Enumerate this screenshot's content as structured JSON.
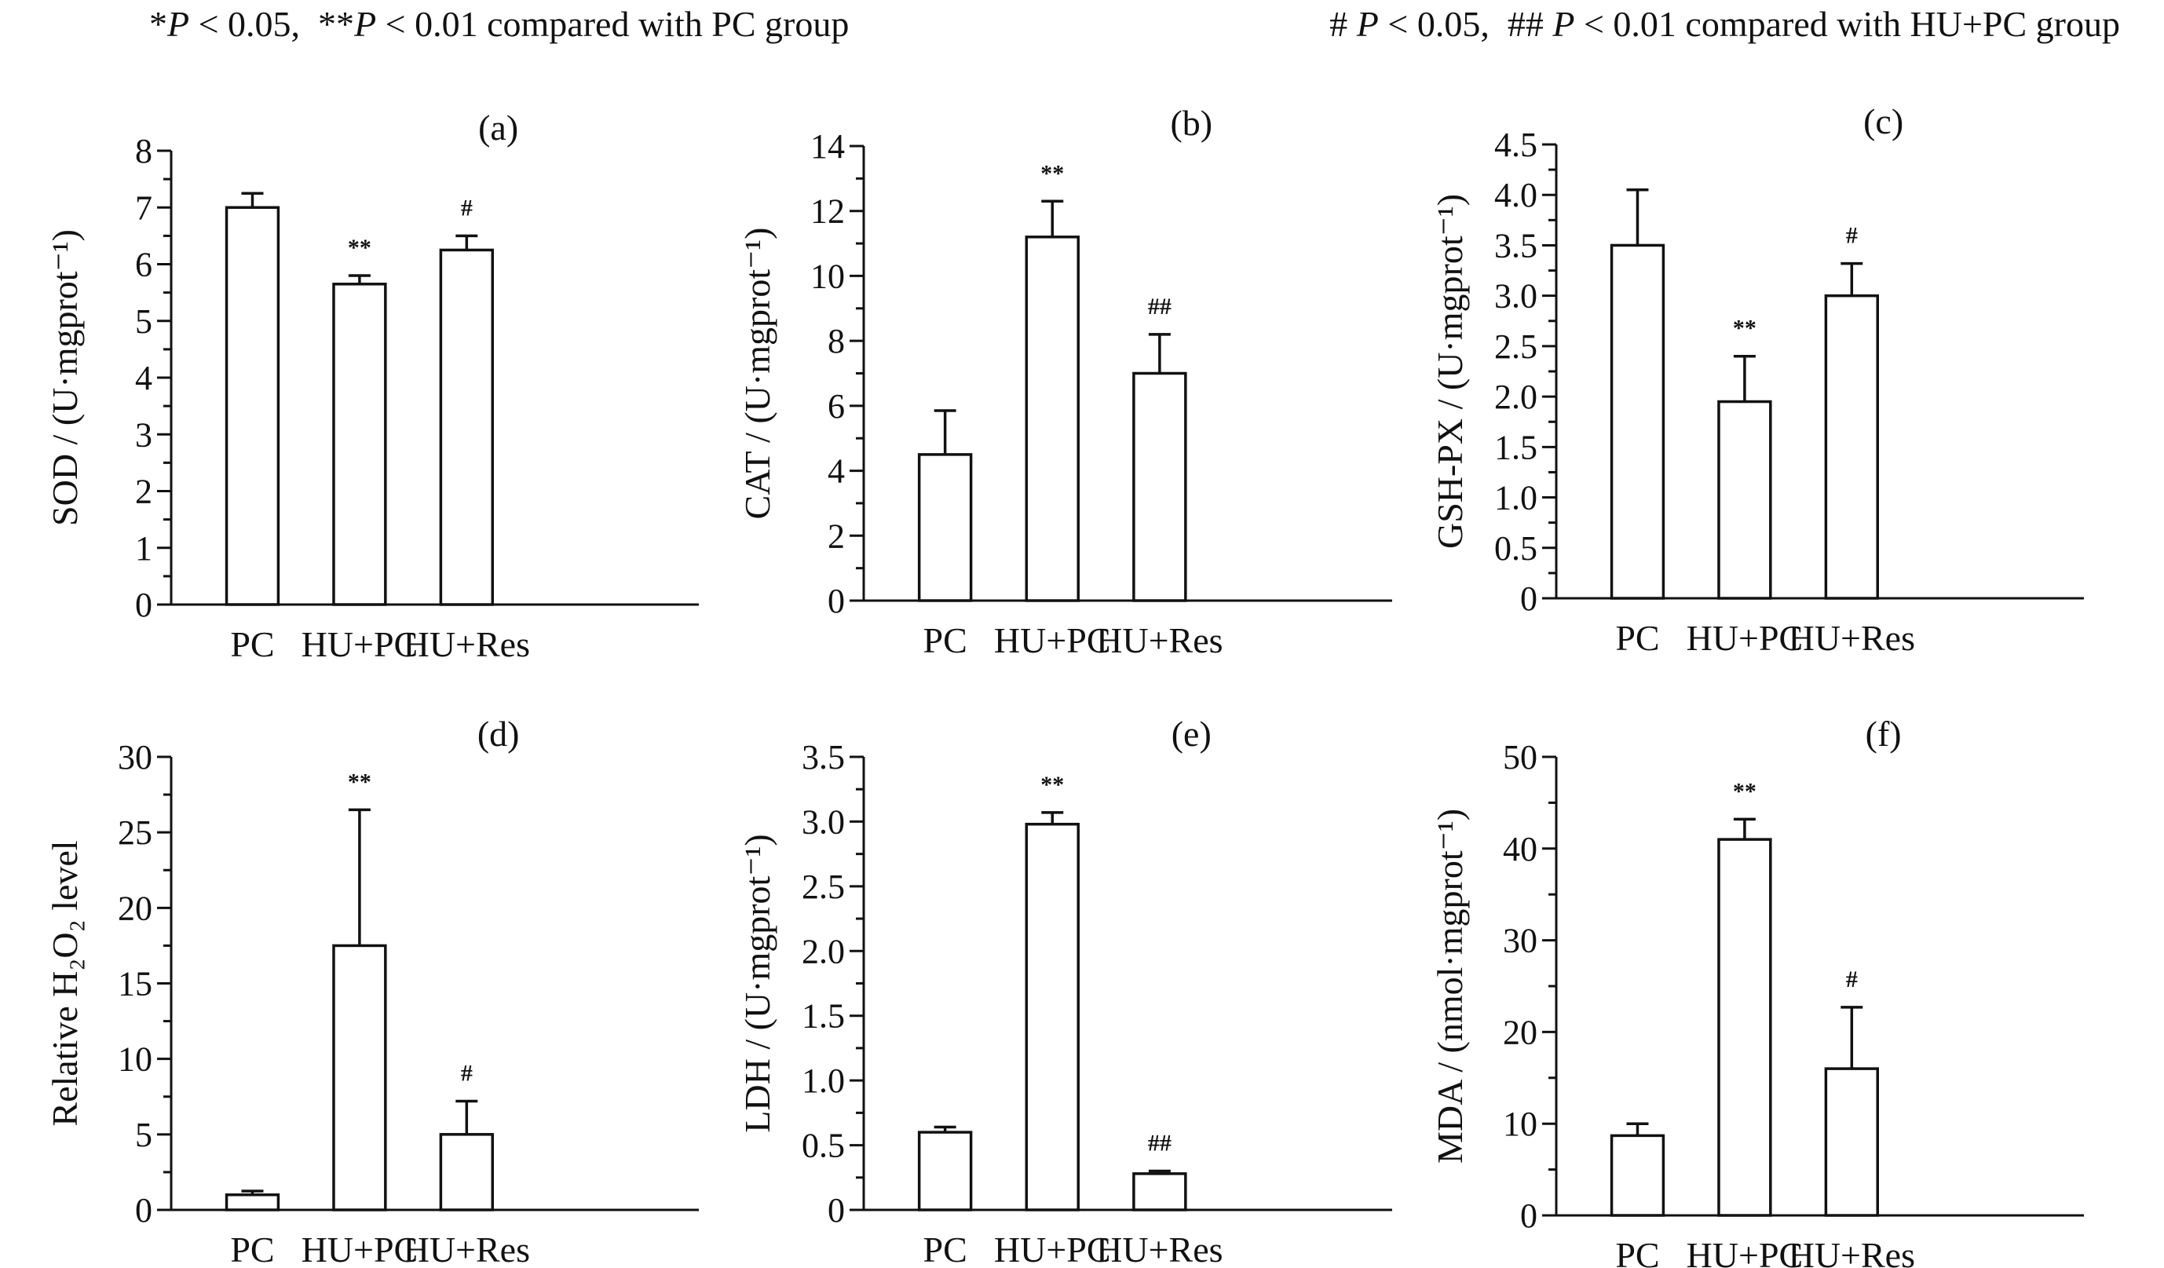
{
  "legend": {
    "left_star": "*",
    "left_p1": "P",
    "left_mid": " < 0.05,  **",
    "left_p2": "P",
    "left_end": " < 0.01 compared with PC group",
    "right_start": "# ",
    "right_p1": "P",
    "right_mid": " < 0.05,  ## ",
    "right_p2": "P",
    "right_end": " < 0.01 compared with HU+PC group"
  },
  "colors": {
    "bar_fill": "#ffffff",
    "stroke": "#111111",
    "background": "#ffffff"
  },
  "chart_data": [
    {
      "type": "bar",
      "panel": "(a)",
      "categories": [
        "PC",
        "HU+PC",
        "HU+Res"
      ],
      "values": [
        7.0,
        5.65,
        6.25
      ],
      "errors": [
        0.25,
        0.15,
        0.25
      ],
      "annotations": [
        "",
        "**",
        "#"
      ],
      "ylabel": "SOD / (U·mgprot⁻¹)",
      "ylim": [
        0,
        8
      ],
      "yticks": [
        0,
        1,
        2,
        3,
        4,
        5,
        6,
        7,
        8
      ],
      "ytick_labels": [
        "0",
        "1",
        "2",
        "3",
        "4",
        "5",
        "6",
        "7",
        "8"
      ]
    },
    {
      "type": "bar",
      "panel": "(b)",
      "categories": [
        "PC",
        "HU+PC",
        "HU+Res"
      ],
      "values": [
        4.5,
        11.2,
        7.0
      ],
      "errors": [
        1.35,
        1.1,
        1.2
      ],
      "annotations": [
        "",
        "**",
        "##"
      ],
      "ylabel": "CAT / (U·mgprot⁻¹)",
      "ylim": [
        0,
        14
      ],
      "yticks": [
        0,
        2,
        4,
        6,
        8,
        10,
        12,
        14
      ],
      "ytick_labels": [
        "0",
        "2",
        "4",
        "6",
        "8",
        "10",
        "12",
        "14"
      ]
    },
    {
      "type": "bar",
      "panel": "(c)",
      "categories": [
        "PC",
        "HU+PC",
        "HU+Res"
      ],
      "values": [
        3.5,
        1.95,
        3.0
      ],
      "errors": [
        0.55,
        0.45,
        0.32
      ],
      "annotations": [
        "",
        "**",
        "#"
      ],
      "ylabel": "GSH-PX / (U·mgprot⁻¹)",
      "ylim": [
        0,
        4.5
      ],
      "yticks": [
        0,
        0.5,
        1.0,
        1.5,
        2.0,
        2.5,
        3.0,
        3.5,
        4.0,
        4.5
      ],
      "ytick_labels": [
        "0",
        "0.5",
        "1.0",
        "1.5",
        "2.0",
        "2.5",
        "3.0",
        "3.5",
        "4.0",
        "4.5"
      ]
    },
    {
      "type": "bar",
      "panel": "(d)",
      "categories": [
        "PC",
        "HU+PC",
        "HU+Res"
      ],
      "values": [
        1.0,
        17.5,
        5.0
      ],
      "errors": [
        0.25,
        9.0,
        2.2
      ],
      "annotations": [
        "",
        "**",
        "#"
      ],
      "ylabel": "Relative H₂O₂ level",
      "ylim": [
        0,
        30
      ],
      "yticks": [
        0,
        5,
        10,
        15,
        20,
        25,
        30
      ],
      "ytick_labels": [
        "0",
        "5",
        "10",
        "15",
        "20",
        "25",
        "30"
      ]
    },
    {
      "type": "bar",
      "panel": "(e)",
      "categories": [
        "PC",
        "HU+PC",
        "HU+Res"
      ],
      "values": [
        0.6,
        2.98,
        0.28
      ],
      "errors": [
        0.04,
        0.09,
        0.02
      ],
      "annotations": [
        "",
        "**",
        "##"
      ],
      "ylabel": "LDH / (U·mgprot⁻¹)",
      "ylim": [
        0,
        3.5
      ],
      "yticks": [
        0,
        0.5,
        1.0,
        1.5,
        2.0,
        2.5,
        3.0,
        3.5
      ],
      "ytick_labels": [
        "0",
        "0.5",
        "1.0",
        "1.5",
        "2.0",
        "2.5",
        "3.0",
        "3.5"
      ]
    },
    {
      "type": "bar",
      "panel": "(f)",
      "categories": [
        "PC",
        "HU+PC",
        "HU+Res"
      ],
      "values": [
        8.7,
        41.0,
        16.0
      ],
      "errors": [
        1.3,
        2.2,
        6.7
      ],
      "annotations": [
        "",
        "**",
        "#"
      ],
      "ylabel": "MDA / (nmol·mgprot⁻¹)",
      "ylim": [
        0,
        50
      ],
      "yticks": [
        0,
        10,
        20,
        30,
        40,
        50
      ],
      "ytick_labels": [
        "0",
        "10",
        "20",
        "30",
        "40",
        "50"
      ]
    }
  ]
}
